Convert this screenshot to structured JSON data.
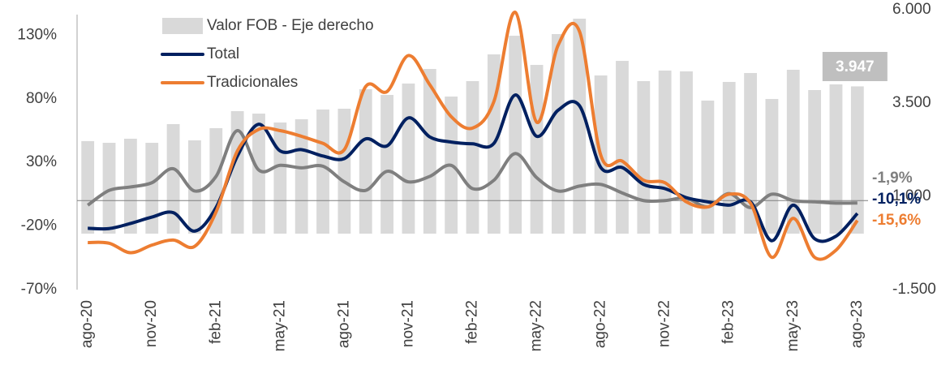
{
  "chart_data": {
    "type": "bar",
    "categories": [
      "ago-20",
      null,
      null,
      "nov-20",
      null,
      null,
      "feb-21",
      null,
      null,
      "may-21",
      null,
      null,
      "ago-21",
      null,
      null,
      "nov-21",
      null,
      null,
      "feb-22",
      null,
      null,
      "may-22",
      null,
      null,
      "ago-22",
      null,
      null,
      "nov-22",
      null,
      null,
      "feb-23",
      null,
      null,
      "may-23",
      null,
      null,
      "ago-23"
    ],
    "ylim": [
      -70,
      150
    ],
    "yticks": [
      {
        "value": -70,
        "label": "-70%"
      },
      {
        "value": -20,
        "label": "-20%"
      },
      {
        "value": 30,
        "label": "30%"
      },
      {
        "value": 80,
        "label": "80%"
      },
      {
        "value": 130,
        "label": "130%"
      }
    ],
    "y2lim": [
      -1500,
      6000
    ],
    "y2ticks": [
      {
        "value": -1500,
        "label": "-1.500"
      },
      {
        "value": 1000,
        "label": "1.000"
      },
      {
        "value": 3500,
        "label": "3.500"
      },
      {
        "value": 6000,
        "label": "6.000"
      }
    ],
    "legend": "top-left",
    "series": [
      {
        "name": "Valor FOB - Eje derecho",
        "type": "bar",
        "axis": "y2",
        "color": "#d9d9d9",
        "values": [
          2480,
          2435,
          2544,
          2435,
          2935,
          2500,
          2826,
          3283,
          3217,
          2978,
          3065,
          3326,
          3348,
          3870,
          3717,
          4022,
          4413,
          3674,
          4087,
          4804,
          5304,
          4522,
          5348,
          5761,
          4239,
          4630,
          4087,
          4370,
          4348,
          3565,
          4065,
          4304,
          3609,
          4391,
          3848,
          4000,
          3947
        ],
        "value_labels": [
          null,
          null,
          null,
          null,
          null,
          null,
          null,
          null,
          null,
          null,
          null,
          null,
          null,
          null,
          null,
          null,
          null,
          null,
          null,
          null,
          null,
          null,
          null,
          null,
          null,
          null,
          null,
          null,
          null,
          null,
          null,
          null,
          null,
          null,
          null,
          null,
          "3.947"
        ]
      },
      {
        "type": "line",
        "color": "#7f7f7f",
        "values": [
          -3.6,
          8,
          10.7,
          14,
          25,
          7.5,
          19,
          55,
          24,
          27.7,
          25.7,
          27,
          14.7,
          8,
          23,
          14.7,
          19,
          27.7,
          9.4,
          16,
          37,
          18,
          7.5,
          11.4,
          12.7,
          6,
          0,
          0,
          2,
          -5,
          5.5,
          -5.5,
          5,
          0,
          -1,
          -2,
          -1.9
        ],
        "value_labels": [
          null,
          null,
          null,
          null,
          null,
          null,
          null,
          null,
          null,
          null,
          null,
          null,
          null,
          null,
          null,
          null,
          null,
          null,
          null,
          null,
          null,
          null,
          null,
          null,
          null,
          null,
          null,
          null,
          null,
          null,
          null,
          null,
          null,
          null,
          null,
          null,
          "-1,9%"
        ]
      },
      {
        "name": "Total",
        "type": "line",
        "color": "#002060",
        "values": [
          -21.8,
          -22,
          -18,
          -13,
          -9.5,
          -24,
          -5.5,
          35,
          60,
          39,
          40,
          35,
          33,
          48.5,
          43,
          65,
          50,
          46,
          44.6,
          45,
          83,
          50.5,
          71,
          74.6,
          26,
          26,
          12.7,
          9.4,
          2.3,
          -1,
          -3.6,
          -1,
          -31.6,
          -3.6,
          -30,
          -28,
          -10.1
        ],
        "value_labels": [
          null,
          null,
          null,
          null,
          null,
          null,
          null,
          null,
          null,
          null,
          null,
          null,
          null,
          null,
          null,
          null,
          null,
          null,
          null,
          null,
          null,
          null,
          null,
          null,
          null,
          null,
          null,
          null,
          null,
          null,
          null,
          null,
          null,
          null,
          null,
          null,
          "-10,1%"
        ]
      },
      {
        "name": "Tradicionales",
        "type": "line",
        "color": "#ed7d31",
        "values": [
          -33,
          -33.5,
          -41,
          -35,
          -31,
          -36,
          -9,
          39,
          56,
          55,
          50.5,
          45,
          40,
          89.6,
          85.7,
          114,
          91,
          66,
          57,
          78,
          148,
          61.6,
          122,
          133,
          35.5,
          31,
          16,
          14,
          -1,
          -5,
          5,
          -2,
          -44.6,
          -14,
          -44.6,
          -39,
          -15.6
        ],
        "value_labels": [
          null,
          null,
          null,
          null,
          null,
          null,
          null,
          null,
          null,
          null,
          null,
          null,
          null,
          null,
          null,
          null,
          null,
          null,
          null,
          null,
          null,
          null,
          null,
          null,
          null,
          null,
          null,
          null,
          null,
          null,
          null,
          null,
          null,
          null,
          null,
          null,
          "-15,6%"
        ]
      }
    ]
  }
}
